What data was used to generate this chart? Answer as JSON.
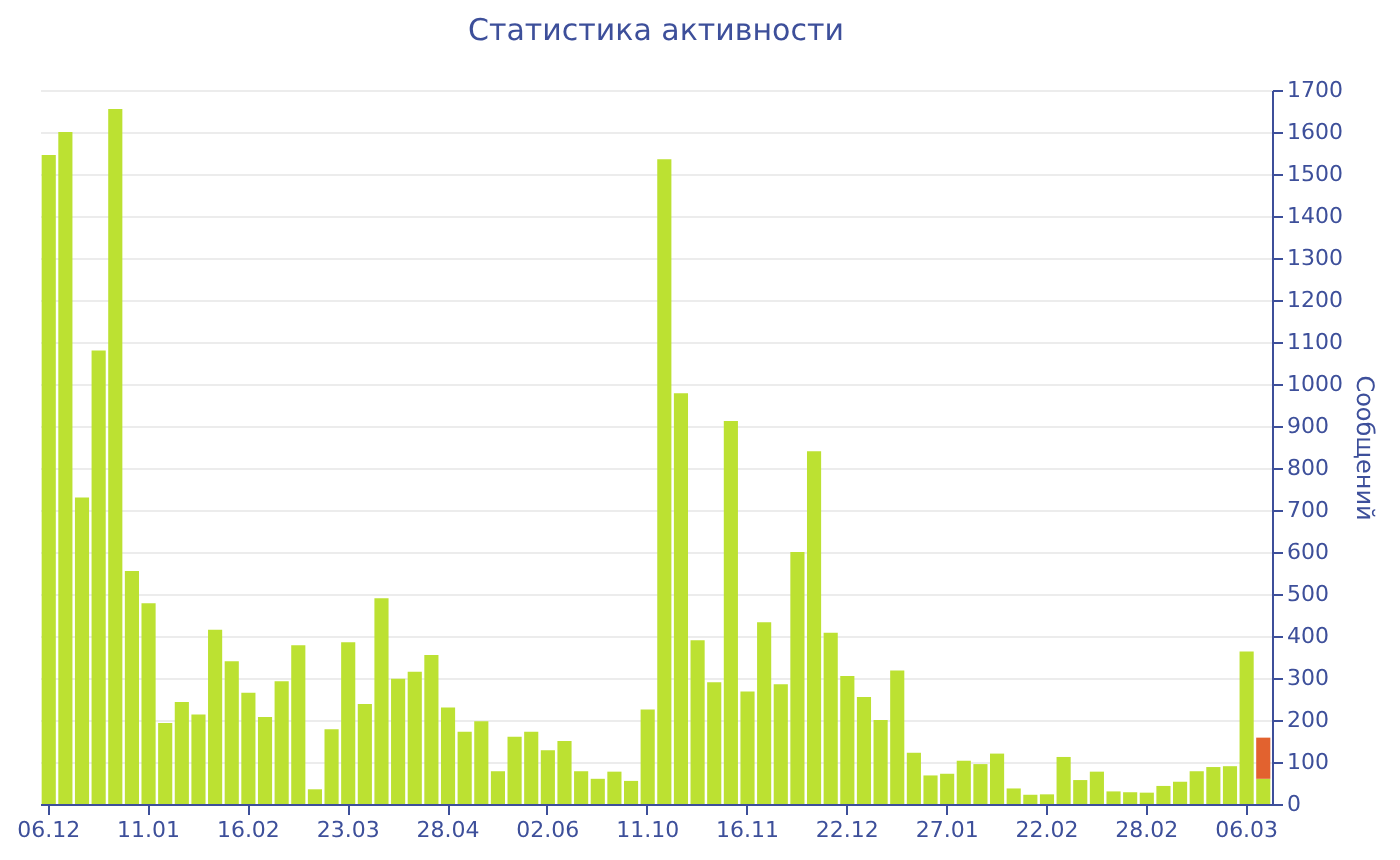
{
  "chart_data": {
    "type": "bar",
    "title": "Статистика активности",
    "ylabel": "Сообщений",
    "categories": [
      "06.12",
      null,
      null,
      null,
      null,
      null,
      "11.01",
      null,
      null,
      null,
      null,
      null,
      "16.02",
      null,
      null,
      null,
      null,
      null,
      "23.03",
      null,
      null,
      null,
      null,
      null,
      "28.04",
      null,
      null,
      null,
      null,
      null,
      "02.06",
      null,
      null,
      null,
      null,
      null,
      "11.10",
      null,
      null,
      null,
      null,
      null,
      "16.11",
      null,
      null,
      null,
      null,
      null,
      "22.12",
      null,
      null,
      null,
      null,
      null,
      "27.01",
      null,
      null,
      null,
      null,
      null,
      "22.02",
      null,
      null,
      null,
      null,
      null,
      "28.02",
      null,
      null,
      null,
      null,
      null,
      "06.03",
      null
    ],
    "series": [
      {
        "color": "#bce132",
        "values": [
          1545,
          1600,
          730,
          1080,
          1655,
          555,
          478,
          193,
          243,
          213,
          415,
          340,
          265,
          207,
          292,
          378,
          35,
          178,
          385,
          238,
          490,
          298,
          315,
          355,
          230,
          172,
          197,
          78,
          160,
          172,
          128,
          150,
          78,
          60,
          77,
          55,
          225,
          1535,
          978,
          390,
          290,
          912,
          268,
          433,
          285,
          600,
          840,
          408,
          305,
          255,
          200,
          318,
          122,
          68,
          72,
          103,
          95,
          120,
          37,
          22,
          23,
          112,
          57,
          77,
          30,
          28,
          27,
          43,
          53,
          78,
          88,
          90,
          363,
          60
        ]
      },
      {
        "color": "#e2622f",
        "values": [
          null,
          null,
          null,
          null,
          null,
          null,
          null,
          null,
          null,
          null,
          null,
          null,
          null,
          null,
          null,
          null,
          null,
          null,
          null,
          null,
          null,
          null,
          null,
          null,
          null,
          null,
          null,
          null,
          null,
          null,
          null,
          null,
          null,
          null,
          null,
          null,
          null,
          null,
          null,
          null,
          null,
          null,
          null,
          null,
          null,
          null,
          null,
          null,
          null,
          null,
          null,
          null,
          null,
          null,
          null,
          null,
          null,
          null,
          null,
          null,
          null,
          null,
          null,
          null,
          null,
          null,
          null,
          null,
          null,
          null,
          null,
          null,
          null,
          98
        ]
      }
    ],
    "stacked": true,
    "ylim": [
      0,
      1700
    ],
    "yticks": [
      0,
      100,
      200,
      300,
      400,
      500,
      600,
      700,
      800,
      900,
      1000,
      1100,
      1200,
      1300,
      1400,
      1500,
      1600,
      1700
    ],
    "grid": "y"
  }
}
